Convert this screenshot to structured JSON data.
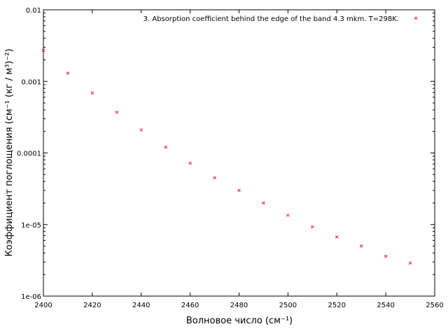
{
  "chart_data": {
    "type": "scatter",
    "series": [
      {
        "name": "3. Absorption coefficient behind the edge of the band 4.3 mkm. T=298K.",
        "color": "#e8282a",
        "marker": "x",
        "x": [
          2400,
          2410,
          2420,
          2430,
          2440,
          2450,
          2460,
          2470,
          2480,
          2490,
          2500,
          2510,
          2520,
          2530,
          2540,
          2550
        ],
        "y": [
          0.0027,
          0.0013,
          0.00069,
          0.00037,
          0.00021,
          0.00012,
          7.2e-05,
          4.5e-05,
          3e-05,
          2e-05,
          1.35e-05,
          9.3e-06,
          6.7e-06,
          5e-06,
          3.6e-06,
          2.9e-06
        ]
      }
    ],
    "xlabel": "Волновое число (см⁻¹)",
    "ylabel": "Коэффициент поглощения (см⁻¹ (кг / м³)⁻²)",
    "xlim": [
      2400,
      2560
    ],
    "ylim": [
      1e-06,
      0.01
    ],
    "yscale": "log",
    "x_ticks": [
      "2400",
      "2420",
      "2440",
      "2460",
      "2480",
      "2500",
      "2520",
      "2540",
      "2560"
    ],
    "y_ticks": [
      "0.01",
      "0.001",
      "0.0001",
      "1e-05",
      "1e-06"
    ],
    "grid": false,
    "legend_position": "top-right"
  }
}
